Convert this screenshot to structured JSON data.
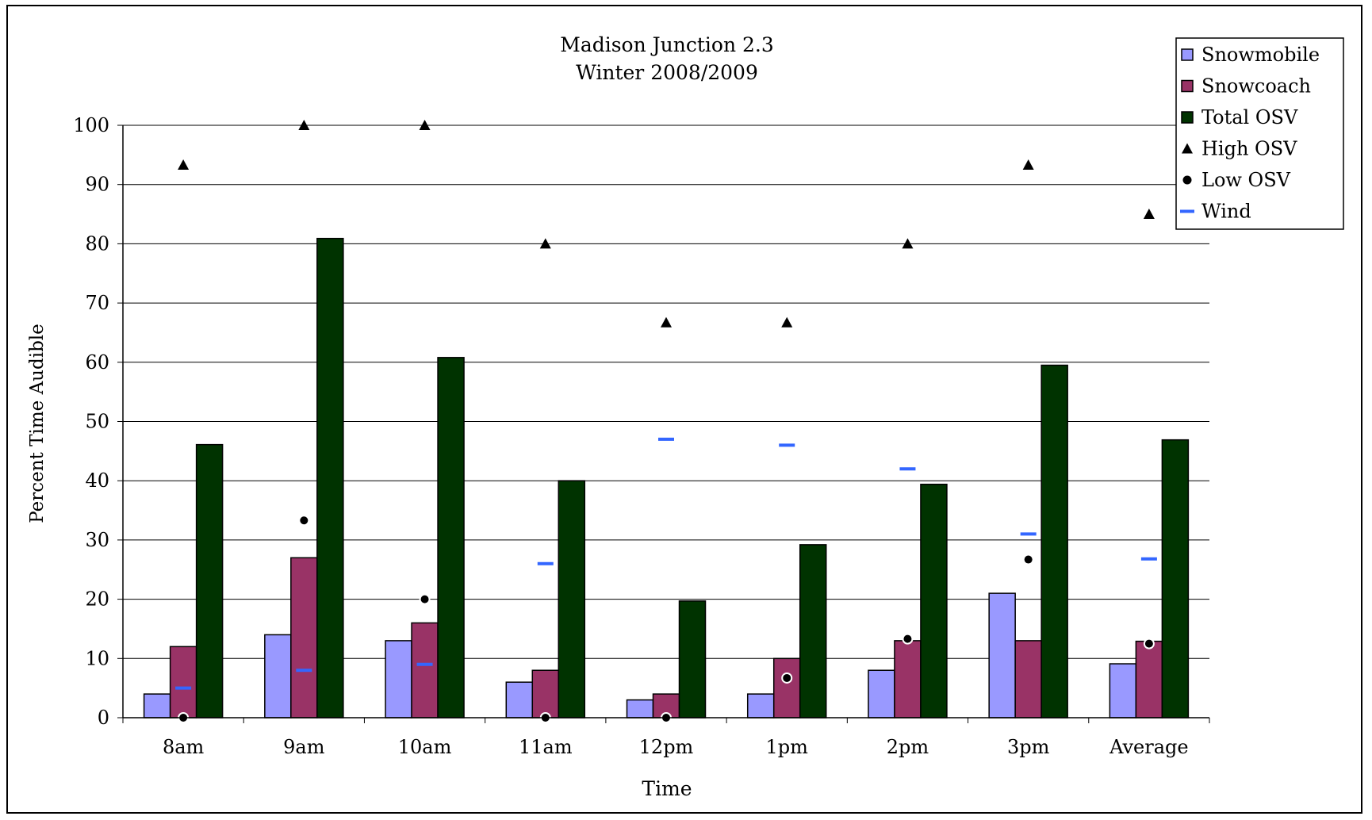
{
  "chart_data": {
    "type": "bar",
    "title": "Madison Junction 2.3",
    "subtitle": "Winter 2008/2009",
    "xlabel": "Time",
    "ylabel": "Percent Time Audible",
    "ylim": [
      0,
      100
    ],
    "yticks": [
      "0",
      "10",
      "20",
      "30",
      "40",
      "50",
      "60",
      "70",
      "80",
      "90",
      "100"
    ],
    "grid": true,
    "legend_position": "top-right",
    "categories": [
      "8am",
      "9am",
      "10am",
      "11am",
      "12pm",
      "1pm",
      "2pm",
      "3pm",
      "Average"
    ],
    "series": [
      {
        "name": "Snowmobile",
        "kind": "bar",
        "color": "#9999ff",
        "values": [
          4,
          14,
          13,
          6,
          3,
          4,
          8,
          21,
          9.1
        ]
      },
      {
        "name": "Snowcoach",
        "kind": "bar",
        "color": "#993366",
        "values": [
          12,
          27,
          16,
          8,
          4,
          10,
          13,
          13,
          12.9
        ]
      },
      {
        "name": "Total OSV",
        "kind": "bar",
        "color": "#003300",
        "values": [
          46.1,
          80.9,
          60.8,
          40,
          19.7,
          29.2,
          39.4,
          59.5,
          46.9
        ]
      },
      {
        "name": "High OSV",
        "kind": "triangle",
        "color": "#000000",
        "values": [
          93.3,
          100,
          100,
          80,
          66.7,
          66.7,
          80,
          93.3,
          85
        ]
      },
      {
        "name": "Low OSV",
        "kind": "circle",
        "color": "#000000",
        "values": [
          0,
          33.3,
          20,
          0,
          0,
          6.7,
          13.3,
          26.7,
          12.5
        ]
      },
      {
        "name": "Wind",
        "kind": "dash",
        "color": "#3366ff",
        "values": [
          5,
          8,
          9,
          26,
          47,
          46,
          42,
          31,
          26.8
        ]
      }
    ]
  }
}
